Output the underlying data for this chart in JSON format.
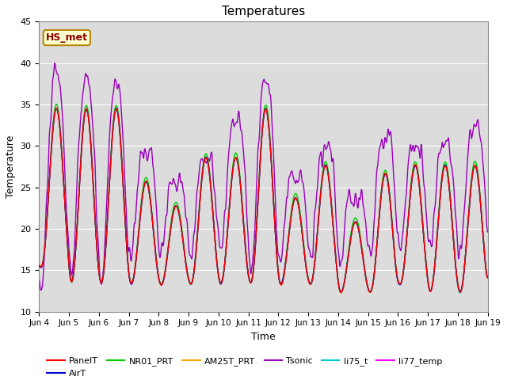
{
  "title": "Temperatures",
  "xlabel": "Time",
  "ylabel": "Temperature",
  "ylim": [
    10,
    45
  ],
  "y_ticks": [
    10,
    15,
    20,
    25,
    30,
    35,
    40,
    45
  ],
  "x_tick_labels": [
    "Jun 4",
    "Jun 5",
    "Jun 6",
    "Jun 7",
    "Jun 8",
    "Jun 9",
    "Jun 10",
    "Jun 11",
    "Jun 12",
    "Jun 13",
    "Jun 14",
    "Jun 15",
    "Jun 16",
    "Jun 17",
    "Jun 18",
    "Jun 19"
  ],
  "annotation_text": "HS_met",
  "annotation_color": "#8B0000",
  "annotation_bg": "#FFFFD0",
  "annotation_edge": "#B8860B",
  "bg_color": "#DCDCDC",
  "series_colors": {
    "PanelT": "#FF0000",
    "AirT": "#0000CC",
    "NR01_PRT": "#00CC00",
    "AM25T_PRT": "#FFA500",
    "Tsonic": "#9900BB",
    "li75_t": "#00CCCC",
    "li77_temp": "#FF00FF"
  },
  "figsize": [
    6.4,
    4.8
  ],
  "dpi": 100
}
